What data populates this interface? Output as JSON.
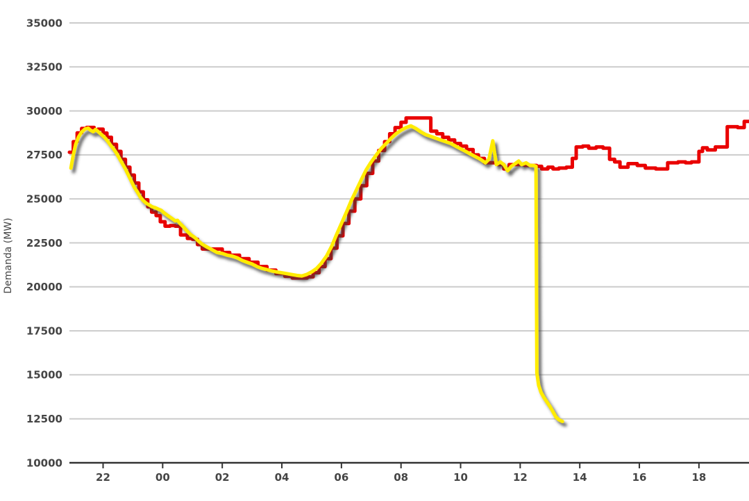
{
  "chart_data": {
    "type": "line",
    "title": "",
    "xlabel": "",
    "ylabel": "Demanda (MW)",
    "ylim": [
      10000,
      35000
    ],
    "xlim_hours": [
      -3.13,
      19.68
    ],
    "grid": true,
    "legend": "none",
    "colors": {
      "grid": "#cccccc",
      "axis": "#333333",
      "tick_text": "#454545",
      "yellow_line": "#ffec00",
      "yellow_shadow": "#3a3a3a",
      "red_line": "#e90000",
      "background": "#ffffff"
    },
    "y_ticks": [
      {
        "value": 35000,
        "label": "35000"
      },
      {
        "value": 32500,
        "label": "32500"
      },
      {
        "value": 30000,
        "label": "30000"
      },
      {
        "value": 27500,
        "label": "27500"
      },
      {
        "value": 25000,
        "label": "25000"
      },
      {
        "value": 22500,
        "label": "22500"
      },
      {
        "value": 20000,
        "label": "20000"
      },
      {
        "value": 17500,
        "label": "17500"
      },
      {
        "value": 15000,
        "label": "15000"
      },
      {
        "value": 12500,
        "label": "12500"
      },
      {
        "value": 10000,
        "label": "10000"
      }
    ],
    "x_ticks": [
      {
        "t": -2,
        "label": "22"
      },
      {
        "t": 0,
        "label": "00"
      },
      {
        "t": 2,
        "label": "02"
      },
      {
        "t": 4,
        "label": "04"
      },
      {
        "t": 6,
        "label": "06"
      },
      {
        "t": 8,
        "label": "08"
      },
      {
        "t": 10,
        "label": "10"
      },
      {
        "t": 12,
        "label": "12"
      },
      {
        "t": 14,
        "label": "14"
      },
      {
        "t": 16,
        "label": "16"
      },
      {
        "t": 18,
        "label": "18"
      }
    ],
    "series": [
      {
        "name": "red-stepped-line",
        "color_key": "red_line",
        "style": "step",
        "width": 5,
        "points": [
          [
            -3.13,
            27650
          ],
          [
            -3.0,
            28250
          ],
          [
            -2.87,
            28750
          ],
          [
            -2.72,
            29000
          ],
          [
            -2.55,
            29060
          ],
          [
            -2.3,
            28900
          ],
          [
            -2.17,
            28960
          ],
          [
            -2.0,
            28740
          ],
          [
            -1.87,
            28500
          ],
          [
            -1.72,
            28100
          ],
          [
            -1.55,
            27700
          ],
          [
            -1.4,
            27250
          ],
          [
            -1.25,
            26800
          ],
          [
            -1.1,
            26350
          ],
          [
            -0.95,
            25900
          ],
          [
            -0.8,
            25400
          ],
          [
            -0.65,
            24950
          ],
          [
            -0.5,
            24550
          ],
          [
            -0.37,
            24250
          ],
          [
            -0.22,
            24050
          ],
          [
            -0.08,
            23700
          ],
          [
            0.08,
            23450
          ],
          [
            0.25,
            23480
          ],
          [
            0.42,
            23450
          ],
          [
            0.6,
            22950
          ],
          [
            0.83,
            22750
          ],
          [
            1.0,
            22700
          ],
          [
            1.17,
            22400
          ],
          [
            1.33,
            22150
          ],
          [
            2.0,
            21950
          ],
          [
            2.25,
            21800
          ],
          [
            2.58,
            21600
          ],
          [
            2.9,
            21400
          ],
          [
            3.2,
            21150
          ],
          [
            3.5,
            20950
          ],
          [
            3.8,
            20750
          ],
          [
            4.1,
            20600
          ],
          [
            4.35,
            20500
          ],
          [
            4.85,
            20570
          ],
          [
            5.05,
            20800
          ],
          [
            5.25,
            21150
          ],
          [
            5.45,
            21600
          ],
          [
            5.65,
            22200
          ],
          [
            5.85,
            22900
          ],
          [
            6.05,
            23600
          ],
          [
            6.25,
            24300
          ],
          [
            6.45,
            25000
          ],
          [
            6.65,
            25750
          ],
          [
            6.85,
            26450
          ],
          [
            7.05,
            27150
          ],
          [
            7.25,
            27750
          ],
          [
            7.45,
            28250
          ],
          [
            7.62,
            28700
          ],
          [
            7.8,
            29050
          ],
          [
            8.0,
            29350
          ],
          [
            8.17,
            29600
          ],
          [
            9.0,
            28850
          ],
          [
            9.2,
            28700
          ],
          [
            9.4,
            28500
          ],
          [
            9.6,
            28350
          ],
          [
            9.8,
            28150
          ],
          [
            10.0,
            28000
          ],
          [
            10.2,
            27800
          ],
          [
            10.42,
            27500
          ],
          [
            10.6,
            27300
          ],
          [
            10.8,
            27050
          ],
          [
            11.25,
            26950
          ],
          [
            11.45,
            26700
          ],
          [
            11.63,
            26950
          ],
          [
            12.15,
            26900
          ],
          [
            12.55,
            26850
          ],
          [
            12.72,
            26700
          ],
          [
            12.93,
            26800
          ],
          [
            13.1,
            26700
          ],
          [
            13.3,
            26750
          ],
          [
            13.55,
            26800
          ],
          [
            13.75,
            27300
          ],
          [
            13.88,
            27950
          ],
          [
            14.1,
            28000
          ],
          [
            14.3,
            27880
          ],
          [
            14.55,
            27950
          ],
          [
            14.78,
            27880
          ],
          [
            15.0,
            27250
          ],
          [
            15.17,
            27100
          ],
          [
            15.35,
            26800
          ],
          [
            15.62,
            27000
          ],
          [
            15.93,
            26900
          ],
          [
            16.2,
            26750
          ],
          [
            16.55,
            26700
          ],
          [
            16.95,
            27050
          ],
          [
            17.3,
            27100
          ],
          [
            17.55,
            27050
          ],
          [
            17.75,
            27100
          ],
          [
            18.0,
            27700
          ],
          [
            18.12,
            27900
          ],
          [
            18.28,
            27780
          ],
          [
            18.55,
            27950
          ],
          [
            18.95,
            29100
          ],
          [
            19.3,
            29050
          ],
          [
            19.52,
            29400
          ],
          [
            19.68,
            29400
          ]
        ]
      },
      {
        "name": "yellow-shadowed-line",
        "color_key": "yellow_line",
        "style": "line",
        "width": 5,
        "shadow": true,
        "points": [
          [
            -3.08,
            26750
          ],
          [
            -3.0,
            27500
          ],
          [
            -2.92,
            28100
          ],
          [
            -2.83,
            28500
          ],
          [
            -2.72,
            28800
          ],
          [
            -2.6,
            28980
          ],
          [
            -2.5,
            29020
          ],
          [
            -2.42,
            28900
          ],
          [
            -2.33,
            28820
          ],
          [
            -2.25,
            28950
          ],
          [
            -2.15,
            28800
          ],
          [
            -2.05,
            28650
          ],
          [
            -1.95,
            28500
          ],
          [
            -1.85,
            28300
          ],
          [
            -1.75,
            28050
          ],
          [
            -1.65,
            27850
          ],
          [
            -1.55,
            27600
          ],
          [
            -1.45,
            27300
          ],
          [
            -1.35,
            27000
          ],
          [
            -1.25,
            26700
          ],
          [
            -1.15,
            26350
          ],
          [
            -1.05,
            26000
          ],
          [
            -0.95,
            25650
          ],
          [
            -0.85,
            25400
          ],
          [
            -0.75,
            25100
          ],
          [
            -0.65,
            24900
          ],
          [
            -0.55,
            24750
          ],
          [
            -0.45,
            24650
          ],
          [
            -0.35,
            24550
          ],
          [
            -0.25,
            24500
          ],
          [
            -0.15,
            24420
          ],
          [
            -0.05,
            24350
          ],
          [
            0.05,
            24200
          ],
          [
            0.17,
            24050
          ],
          [
            0.3,
            23900
          ],
          [
            0.42,
            23750
          ],
          [
            0.5,
            23780
          ],
          [
            0.58,
            23600
          ],
          [
            0.7,
            23400
          ],
          [
            0.83,
            23150
          ],
          [
            0.95,
            22950
          ],
          [
            1.08,
            22800
          ],
          [
            1.2,
            22600
          ],
          [
            1.33,
            22420
          ],
          [
            1.5,
            22250
          ],
          [
            1.67,
            22100
          ],
          [
            1.83,
            21950
          ],
          [
            2.0,
            21900
          ],
          [
            2.17,
            21800
          ],
          [
            2.33,
            21750
          ],
          [
            2.5,
            21650
          ],
          [
            2.67,
            21500
          ],
          [
            2.83,
            21400
          ],
          [
            3.0,
            21300
          ],
          [
            3.17,
            21150
          ],
          [
            3.33,
            21050
          ],
          [
            3.5,
            20980
          ],
          [
            3.67,
            20900
          ],
          [
            3.83,
            20850
          ],
          [
            4.0,
            20800
          ],
          [
            4.17,
            20750
          ],
          [
            4.33,
            20700
          ],
          [
            4.5,
            20650
          ],
          [
            4.67,
            20620
          ],
          [
            4.83,
            20700
          ],
          [
            5.0,
            20850
          ],
          [
            5.17,
            21050
          ],
          [
            5.33,
            21350
          ],
          [
            5.5,
            21750
          ],
          [
            5.67,
            22300
          ],
          [
            5.83,
            22950
          ],
          [
            6.0,
            23600
          ],
          [
            6.17,
            24250
          ],
          [
            6.33,
            24900
          ],
          [
            6.5,
            25500
          ],
          [
            6.67,
            26100
          ],
          [
            6.83,
            26650
          ],
          [
            7.0,
            27100
          ],
          [
            7.17,
            27500
          ],
          [
            7.33,
            27850
          ],
          [
            7.5,
            28150
          ],
          [
            7.67,
            28450
          ],
          [
            7.83,
            28700
          ],
          [
            8.0,
            28900
          ],
          [
            8.17,
            29050
          ],
          [
            8.33,
            29150
          ],
          [
            8.5,
            29000
          ],
          [
            8.67,
            28800
          ],
          [
            8.83,
            28650
          ],
          [
            9.0,
            28550
          ],
          [
            9.17,
            28450
          ],
          [
            9.33,
            28350
          ],
          [
            9.5,
            28250
          ],
          [
            9.67,
            28150
          ],
          [
            9.83,
            28000
          ],
          [
            10.0,
            27850
          ],
          [
            10.17,
            27700
          ],
          [
            10.33,
            27550
          ],
          [
            10.5,
            27400
          ],
          [
            10.67,
            27250
          ],
          [
            10.83,
            27050
          ],
          [
            10.95,
            27250
          ],
          [
            11.08,
            28300
          ],
          [
            11.2,
            26950
          ],
          [
            11.33,
            27100
          ],
          [
            11.45,
            26950
          ],
          [
            11.58,
            26600
          ],
          [
            11.7,
            26850
          ],
          [
            11.83,
            27000
          ],
          [
            11.95,
            27150
          ],
          [
            12.05,
            26950
          ],
          [
            12.2,
            27050
          ],
          [
            12.33,
            26900
          ],
          [
            12.45,
            26900
          ],
          [
            12.53,
            26850
          ],
          [
            12.56,
            15100
          ],
          [
            12.62,
            14400
          ],
          [
            12.7,
            14000
          ],
          [
            12.8,
            13700
          ],
          [
            12.9,
            13450
          ],
          [
            13.0,
            13200
          ],
          [
            13.1,
            12900
          ],
          [
            13.2,
            12600
          ],
          [
            13.3,
            12450
          ],
          [
            13.42,
            12350
          ]
        ]
      }
    ]
  }
}
